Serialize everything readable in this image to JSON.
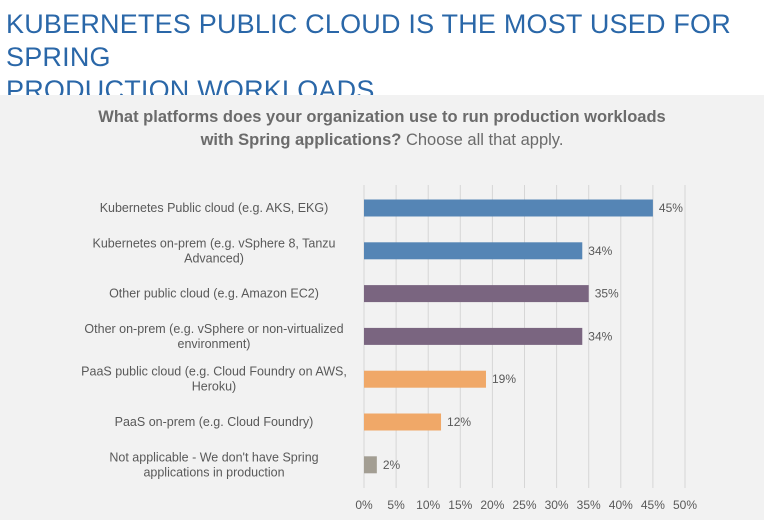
{
  "slide": {
    "title_line1": "KUBERNETES PUBLIC CLOUD IS THE MOST USED FOR SPRING",
    "title_line2": "PRODUCTION WORKLOADS"
  },
  "chart_data": {
    "type": "bar",
    "orientation": "horizontal",
    "title_bold_line1": "What platforms does your organization use to run production workloads",
    "title_bold_line2": "with Spring applications?",
    "title_regular": " Choose all that apply.",
    "categories": [
      [
        "Kubernetes Public cloud (e.g. AKS, EKG)"
      ],
      [
        "Kubernetes on-prem (e.g. vSphere 8, Tanzu",
        "Advanced)"
      ],
      [
        "Other public cloud (e.g. Amazon EC2)"
      ],
      [
        "Other on-prem (e.g. vSphere or non-virtualized",
        "environment)"
      ],
      [
        "PaaS public cloud (e.g. Cloud Foundry on AWS,",
        "Heroku)"
      ],
      [
        "PaaS on-prem (e.g. Cloud Foundry)"
      ],
      [
        "Not applicable - We don't have Spring",
        "applications in production"
      ]
    ],
    "values": [
      45,
      34,
      35,
      34,
      19,
      12,
      2
    ],
    "value_labels": [
      "45%",
      "34%",
      "35%",
      "34%",
      "19%",
      "12%",
      "2%"
    ],
    "bar_colors": [
      "#5585b5",
      "#5585b5",
      "#7a6580",
      "#7a6580",
      "#f0a868",
      "#f0a868",
      "#a39e93"
    ],
    "xlim": [
      0,
      50
    ],
    "x_ticks": [
      0,
      5,
      10,
      15,
      20,
      25,
      30,
      35,
      40,
      45,
      50
    ],
    "x_tick_labels": [
      "0%",
      "5%",
      "10%",
      "15%",
      "20%",
      "25%",
      "30%",
      "35%",
      "40%",
      "45%",
      "50%"
    ],
    "grid": true
  }
}
